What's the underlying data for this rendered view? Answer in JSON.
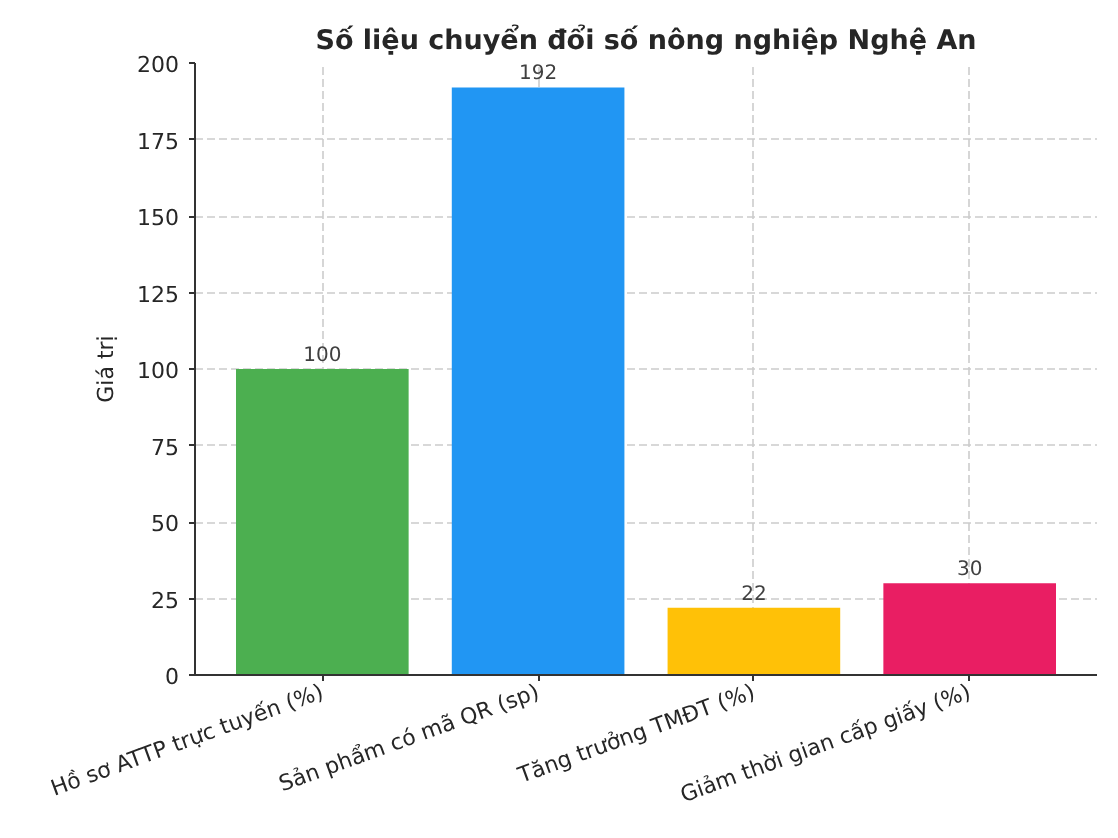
{
  "chart_data": {
    "type": "bar",
    "title": "Số liệu chuyển đổi số nông nghiệp Nghệ An",
    "ylabel": "Giá trị",
    "categories": [
      "Hồ sơ ATTP trực tuyến (%)",
      "Sản phẩm có mã QR (sp)",
      "Tăng trưởng TMĐT (%)",
      "Giảm thời gian cấp giấy (%)"
    ],
    "values": [
      100,
      192,
      22,
      30
    ],
    "colors": [
      "#4caf50",
      "#2196f3",
      "#ffc107",
      "#e91e63"
    ],
    "ylim": [
      0,
      200
    ],
    "yticks": [
      0,
      25,
      50,
      75,
      100,
      125,
      150,
      175,
      200
    ],
    "grid": true,
    "data_labels": true
  }
}
